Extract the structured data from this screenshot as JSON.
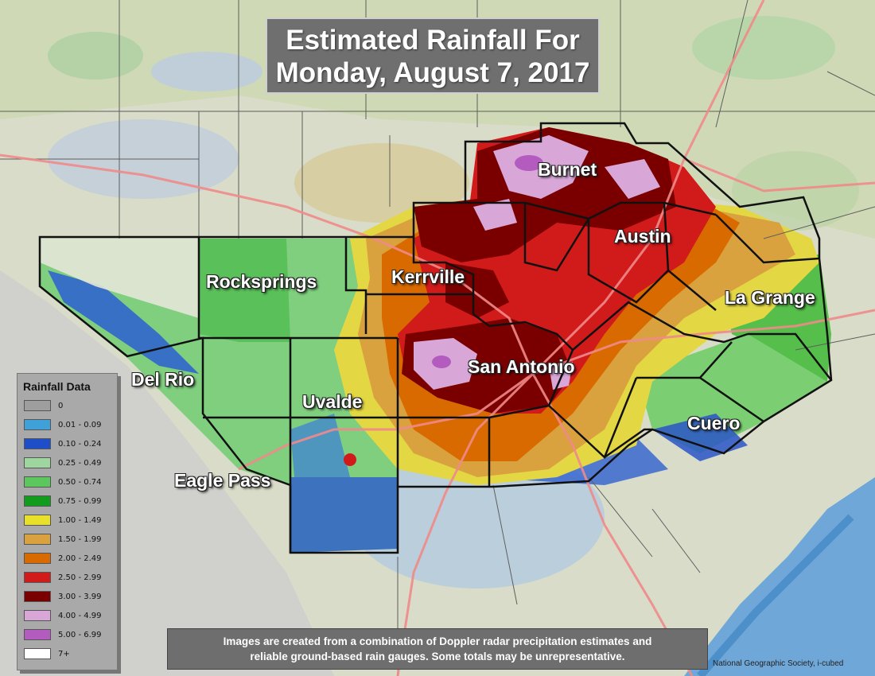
{
  "title": {
    "line1": "Estimated Rainfall For",
    "line2": "Monday, August 7, 2017"
  },
  "cities": [
    {
      "name": "Burnet"
    },
    {
      "name": "Austin"
    },
    {
      "name": "Rocksprings"
    },
    {
      "name": "Kerrville"
    },
    {
      "name": "La Grange"
    },
    {
      "name": "San Antonio"
    },
    {
      "name": "Del Rio"
    },
    {
      "name": "Uvalde"
    },
    {
      "name": "Cuero"
    },
    {
      "name": "Eagle Pass"
    }
  ],
  "legend": {
    "title": "Rainfall Data",
    "items": [
      {
        "label": "0",
        "color": "#9e9e9e"
      },
      {
        "label": "0.01 - 0.09",
        "color": "#3fa1d7"
      },
      {
        "label": "0.10 - 0.24",
        "color": "#1f4fc8"
      },
      {
        "label": "0.25 - 0.49",
        "color": "#9fd6a0"
      },
      {
        "label": "0.50 - 0.74",
        "color": "#5cc75c"
      },
      {
        "label": "0.75 - 0.99",
        "color": "#119c1d"
      },
      {
        "label": "1.00 - 1.49",
        "color": "#e8e02a"
      },
      {
        "label": "1.50 - 1.99",
        "color": "#d9a23f"
      },
      {
        "label": "2.00 - 2.49",
        "color": "#d96a00"
      },
      {
        "label": "2.50 - 2.99",
        "color": "#d11a1a"
      },
      {
        "label": "3.00 - 3.99",
        "color": "#7a0000"
      },
      {
        "label": "4.00 - 4.99",
        "color": "#d8a7d8"
      },
      {
        "label": "5.00 - 6.99",
        "color": "#b35bbf"
      },
      {
        "label": "7+",
        "color": "#ffffff"
      }
    ]
  },
  "note": {
    "line1": "Images are created from a combination of Doppler radar precipitation estimates and",
    "line2": "reliable ground-based rain gauges. Some totals may be unrepresentative."
  },
  "credit": "National Geographic Society, i-cubed"
}
